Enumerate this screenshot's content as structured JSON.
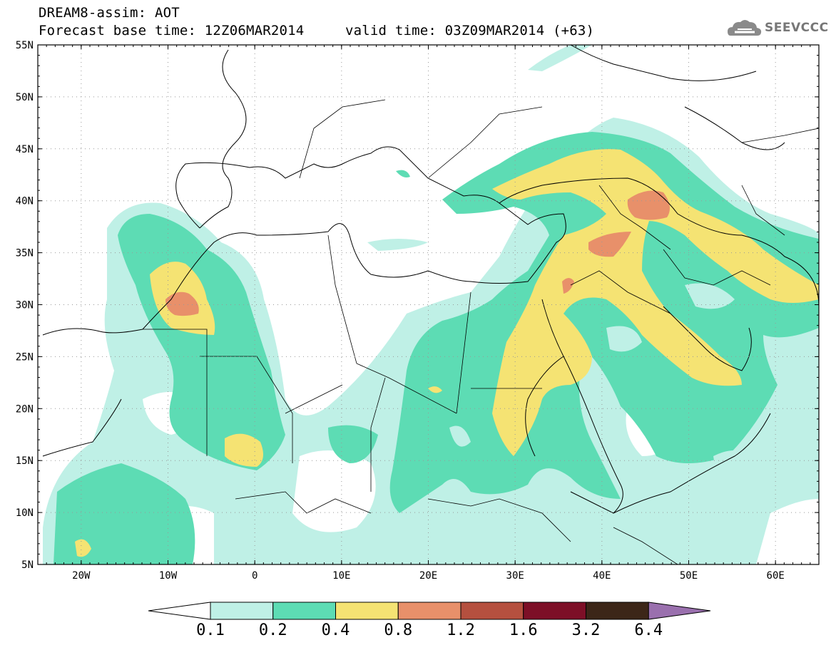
{
  "header": {
    "title": "DREAM8-assim: AOT",
    "base_time": "Forecast base time: 12Z06MAR2014",
    "valid_time": "valid time: 03Z09MAR2014 (+63)"
  },
  "logo": {
    "text": "SEEVCCC",
    "icon": "cloud-logo-icon"
  },
  "axes": {
    "lat_labels": [
      "55N",
      "50N",
      "45N",
      "40N",
      "35N",
      "30N",
      "25N",
      "20N",
      "15N",
      "10N",
      "5N"
    ],
    "lat_values": [
      55,
      50,
      45,
      40,
      35,
      30,
      25,
      20,
      15,
      10,
      5
    ],
    "lon_labels": [
      "20W",
      "10W",
      "0",
      "10E",
      "20E",
      "30E",
      "40E",
      "50E",
      "60E"
    ],
    "lon_values": [
      -20,
      -10,
      0,
      10,
      20,
      30,
      40,
      50,
      60
    ],
    "lon_range": [
      -25,
      65
    ],
    "lat_range": [
      5,
      55
    ],
    "grid": "dotted"
  },
  "colorbar": {
    "labels": [
      "0.1",
      "0.2",
      "0.4",
      "0.8",
      "1.2",
      "1.6",
      "3.2",
      "6.4"
    ],
    "colors": [
      "#bff0e6",
      "#5ddcb4",
      "#f5e373",
      "#e8906a",
      "#b5503f",
      "#7d0f27",
      "#3c2618",
      "#9a70ae"
    ]
  },
  "colors": {
    "c1": "#bff0e6",
    "c2": "#5ddcb4",
    "c3": "#f5e373",
    "c4": "#e8906a",
    "c5": "#b5503f"
  }
}
